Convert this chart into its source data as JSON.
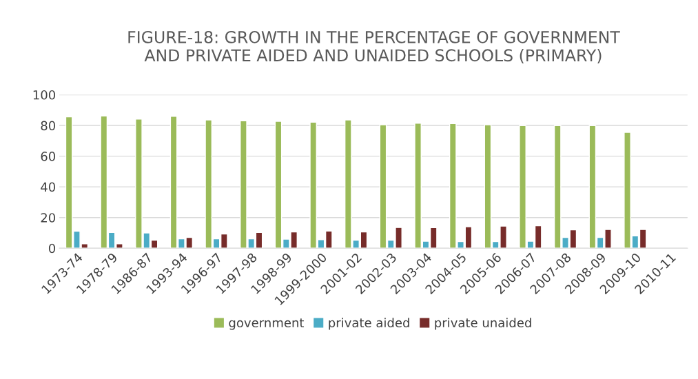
{
  "chart_data": {
    "type": "bar",
    "title": "FIGURE-18: GROWTH IN THE PERCENTAGE OF GOVERNMENT\nAND PRIVATE AIDED AND UNAIDED SCHOOLS (PRIMARY)",
    "categories": [
      "1973-74",
      "1978-79",
      "1986-87",
      "1993-94",
      "1996-97",
      "1997-98",
      "1998-99",
      "1999-2000",
      "2001-02",
      "2002-03",
      "2003-04",
      "2004-05",
      "2005-06",
      "2006-07",
      "2007-08",
      "2008-09",
      "2009-10",
      "2010-11"
    ],
    "series": [
      {
        "name": "government",
        "color": "#9bbb59",
        "values": [
          85.6,
          86.2,
          84.2,
          85.9,
          83.6,
          83.0,
          82.7,
          82.1,
          83.6,
          80.5,
          81.5,
          81.2,
          80.5,
          79.9,
          79.9,
          79.9,
          75.5,
          null
        ]
      },
      {
        "name": "private aided",
        "color": "#4bacc6",
        "values": [
          11.1,
          10.3,
          10.0,
          6.2,
          6.2,
          6.2,
          5.9,
          5.6,
          5.2,
          5.2,
          4.6,
          4.3,
          4.3,
          4.6,
          7.1,
          7.1,
          8.0,
          null
        ]
      },
      {
        "name": "private unaided",
        "color": "#772c2a",
        "values": [
          2.9,
          2.9,
          5.2,
          7.1,
          9.3,
          10.3,
          10.6,
          11.2,
          10.6,
          13.5,
          13.4,
          14.0,
          14.4,
          14.7,
          12.0,
          12.2,
          12.2,
          null
        ]
      }
    ],
    "ylim": [
      0,
      100
    ],
    "yticks": [
      0,
      20,
      40,
      60,
      80,
      100
    ],
    "grid": "y",
    "legend": "bottom"
  }
}
